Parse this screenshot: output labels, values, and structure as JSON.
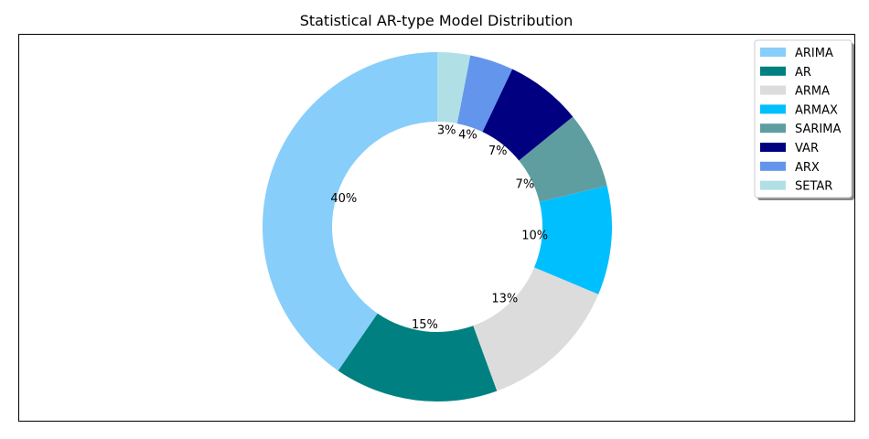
{
  "chart_data": {
    "type": "pie",
    "donut": true,
    "title": "Statistical AR-type Model Distribution",
    "categories": [
      "ARIMA",
      "AR",
      "ARMA",
      "ARMAX",
      "SARIMA",
      "VAR",
      "ARX",
      "SETAR"
    ],
    "values": [
      40,
      15,
      13,
      10,
      7,
      7,
      4,
      3
    ],
    "labels": [
      "40%",
      "15%",
      "13%",
      "10%",
      "7%",
      "7%",
      "4%",
      "3%"
    ],
    "colors": [
      "#87cefa",
      "#008080",
      "#dcdcdc",
      "#00bfff",
      "#5f9ea0",
      "#000080",
      "#6495ed",
      "#b0e0e6"
    ],
    "start_angle_deg": 90,
    "direction": "counterclockwise",
    "legend_position": "top-right"
  }
}
